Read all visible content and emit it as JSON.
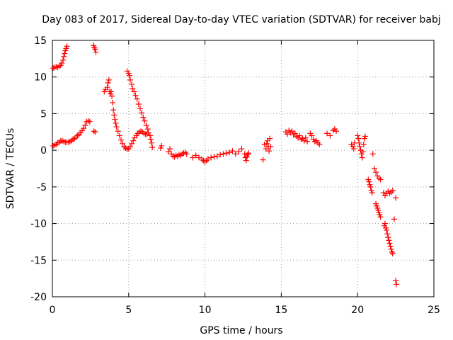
{
  "chart_data": {
    "type": "scatter",
    "title": "Day 083 of 2017, Sidereal Day-to-day VTEC variation (SDTVAR) for receiver babj",
    "xlabel": "GPS time / hours",
    "ylabel": "SDTVAR / TECUs",
    "xlim": [
      0,
      25
    ],
    "ylim": [
      -20,
      15
    ],
    "xticks": [
      0,
      5,
      10,
      15,
      20,
      25
    ],
    "yticks": [
      -20,
      -15,
      -10,
      -5,
      0,
      5,
      10,
      15
    ],
    "grid": true,
    "marker": "+",
    "color": "#ff0000",
    "series": [
      {
        "name": "SDTVAR",
        "points": [
          [
            0.05,
            11.2
          ],
          [
            0.15,
            11.3
          ],
          [
            0.25,
            11.4
          ],
          [
            0.35,
            11.3
          ],
          [
            0.45,
            11.5
          ],
          [
            0.55,
            11.6
          ],
          [
            0.62,
            11.9
          ],
          [
            0.7,
            12.3
          ],
          [
            0.75,
            12.8
          ],
          [
            0.8,
            13.2
          ],
          [
            0.85,
            13.6
          ],
          [
            0.9,
            13.9
          ],
          [
            0.95,
            14.2
          ],
          [
            0.05,
            0.6
          ],
          [
            0.15,
            0.7
          ],
          [
            0.25,
            0.8
          ],
          [
            0.35,
            1.0
          ],
          [
            0.45,
            1.1
          ],
          [
            0.55,
            1.3
          ],
          [
            0.65,
            1.3
          ],
          [
            0.75,
            1.2
          ],
          [
            0.85,
            1.1
          ],
          [
            0.95,
            1.1
          ],
          [
            1.05,
            1.1
          ],
          [
            1.15,
            1.2
          ],
          [
            1.25,
            1.3
          ],
          [
            1.35,
            1.5
          ],
          [
            1.45,
            1.6
          ],
          [
            1.55,
            1.8
          ],
          [
            1.65,
            2.0
          ],
          [
            1.75,
            2.2
          ],
          [
            1.85,
            2.4
          ],
          [
            1.95,
            2.7
          ],
          [
            2.05,
            3.0
          ],
          [
            2.15,
            3.4
          ],
          [
            2.25,
            3.9
          ],
          [
            2.35,
            4.0
          ],
          [
            2.45,
            3.9
          ],
          [
            2.7,
            14.3
          ],
          [
            2.75,
            14.0
          ],
          [
            2.8,
            13.8
          ],
          [
            2.85,
            13.4
          ],
          [
            2.72,
            2.6
          ],
          [
            2.8,
            2.5
          ],
          [
            3.4,
            8.0
          ],
          [
            3.5,
            8.3
          ],
          [
            3.6,
            8.6
          ],
          [
            3.65,
            9.2
          ],
          [
            3.7,
            9.6
          ],
          [
            3.75,
            8.0
          ],
          [
            3.8,
            7.7
          ],
          [
            3.85,
            8.0
          ],
          [
            3.9,
            7.4
          ],
          [
            3.95,
            6.5
          ],
          [
            4.0,
            5.5
          ],
          [
            4.05,
            4.8
          ],
          [
            4.1,
            4.2
          ],
          [
            4.15,
            3.7
          ],
          [
            4.2,
            3.2
          ],
          [
            4.3,
            2.6
          ],
          [
            4.4,
            2.0
          ],
          [
            4.5,
            1.4
          ],
          [
            4.6,
            0.9
          ],
          [
            4.7,
            0.5
          ],
          [
            4.8,
            0.3
          ],
          [
            4.9,
            0.15
          ],
          [
            5.0,
            0.2
          ],
          [
            5.1,
            0.5
          ],
          [
            5.2,
            0.9
          ],
          [
            5.3,
            1.3
          ],
          [
            5.4,
            1.7
          ],
          [
            5.5,
            2.0
          ],
          [
            5.6,
            2.3
          ],
          [
            5.7,
            2.5
          ],
          [
            5.8,
            2.6
          ],
          [
            5.9,
            2.5
          ],
          [
            6.0,
            2.3
          ],
          [
            6.1,
            2.2
          ],
          [
            6.2,
            2.2
          ],
          [
            4.9,
            10.8
          ],
          [
            5.0,
            10.5
          ],
          [
            5.05,
            10.2
          ],
          [
            5.1,
            9.6
          ],
          [
            5.2,
            9.0
          ],
          [
            5.25,
            8.4
          ],
          [
            5.35,
            8.0
          ],
          [
            5.45,
            7.5
          ],
          [
            5.55,
            7.0
          ],
          [
            5.65,
            6.3
          ],
          [
            5.75,
            5.7
          ],
          [
            5.85,
            5.1
          ],
          [
            5.95,
            4.5
          ],
          [
            6.05,
            4.0
          ],
          [
            6.15,
            3.4
          ],
          [
            6.25,
            2.9
          ],
          [
            6.3,
            2.4
          ],
          [
            6.4,
            2.0
          ],
          [
            6.45,
            1.5
          ],
          [
            6.5,
            1.0
          ],
          [
            6.55,
            0.4
          ],
          [
            7.1,
            0.3
          ],
          [
            7.15,
            0.6
          ],
          [
            7.6,
            -0.2
          ],
          [
            7.7,
            0.2
          ],
          [
            7.8,
            -0.5
          ],
          [
            7.9,
            -0.8
          ],
          [
            8.0,
            -0.9
          ],
          [
            8.1,
            -0.7
          ],
          [
            8.2,
            -0.8
          ],
          [
            8.3,
            -0.6
          ],
          [
            8.4,
            -0.7
          ],
          [
            8.5,
            -0.5
          ],
          [
            8.6,
            -0.4
          ],
          [
            8.7,
            -0.3
          ],
          [
            8.8,
            -0.5
          ],
          [
            9.2,
            -1.0
          ],
          [
            9.4,
            -0.7
          ],
          [
            9.6,
            -1.0
          ],
          [
            9.8,
            -1.2
          ],
          [
            9.9,
            -1.4
          ],
          [
            10.0,
            -1.6
          ],
          [
            10.1,
            -1.4
          ],
          [
            10.2,
            -1.2
          ],
          [
            10.4,
            -1.0
          ],
          [
            10.6,
            -0.9
          ],
          [
            10.8,
            -0.8
          ],
          [
            11.0,
            -0.6
          ],
          [
            11.2,
            -0.5
          ],
          [
            11.4,
            -0.4
          ],
          [
            11.6,
            -0.3
          ],
          [
            11.8,
            -0.1
          ],
          [
            12.0,
            -0.5
          ],
          [
            12.2,
            -0.2
          ],
          [
            12.4,
            0.2
          ],
          [
            12.6,
            -0.5
          ],
          [
            12.65,
            -1.0
          ],
          [
            12.7,
            -1.4
          ],
          [
            12.75,
            -0.9
          ],
          [
            12.8,
            -0.6
          ],
          [
            12.85,
            -0.4
          ],
          [
            13.8,
            -1.3
          ],
          [
            13.9,
            0.8
          ],
          [
            14.0,
            0.2
          ],
          [
            14.05,
            0.9
          ],
          [
            14.1,
            1.3
          ],
          [
            14.15,
            0.5
          ],
          [
            14.2,
            -0.1
          ],
          [
            14.25,
            1.6
          ],
          [
            14.3,
            0.5
          ],
          [
            15.3,
            2.5
          ],
          [
            15.4,
            2.2
          ],
          [
            15.5,
            2.7
          ],
          [
            15.6,
            2.4
          ],
          [
            15.7,
            2.6
          ],
          [
            15.8,
            2.1
          ],
          [
            15.9,
            2.3
          ],
          [
            16.0,
            1.9
          ],
          [
            16.1,
            1.7
          ],
          [
            16.2,
            2.0
          ],
          [
            16.3,
            1.5
          ],
          [
            16.4,
            1.6
          ],
          [
            16.5,
            1.3
          ],
          [
            16.6,
            1.7
          ],
          [
            16.7,
            1.2
          ],
          [
            16.9,
            2.3
          ],
          [
            17.0,
            2.0
          ],
          [
            17.1,
            1.5
          ],
          [
            17.2,
            1.2
          ],
          [
            17.3,
            1.3
          ],
          [
            17.4,
            1.0
          ],
          [
            17.5,
            0.8
          ],
          [
            18.0,
            2.3
          ],
          [
            18.2,
            2.0
          ],
          [
            18.4,
            2.7
          ],
          [
            18.5,
            2.9
          ],
          [
            18.6,
            2.6
          ],
          [
            19.6,
            0.8
          ],
          [
            19.7,
            0.5
          ],
          [
            19.75,
            0.2
          ],
          [
            19.8,
            1.0
          ],
          [
            20.0,
            2.0
          ],
          [
            20.05,
            1.6
          ],
          [
            20.1,
            1.0
          ],
          [
            20.15,
            0.5
          ],
          [
            20.2,
            0.0
          ],
          [
            20.25,
            -0.5
          ],
          [
            20.3,
            -1.0
          ],
          [
            20.35,
            -0.2
          ],
          [
            20.4,
            0.8
          ],
          [
            20.45,
            1.6
          ],
          [
            20.5,
            1.9
          ],
          [
            20.7,
            -4.0
          ],
          [
            20.75,
            -4.3
          ],
          [
            20.8,
            -4.7
          ],
          [
            20.85,
            -5.0
          ],
          [
            20.9,
            -5.5
          ],
          [
            20.95,
            -5.8
          ],
          [
            21.0,
            -0.5
          ],
          [
            21.1,
            -2.5
          ],
          [
            21.2,
            -3.0
          ],
          [
            21.3,
            -3.5
          ],
          [
            21.4,
            -3.8
          ],
          [
            21.5,
            -4.0
          ],
          [
            21.2,
            -7.3
          ],
          [
            21.25,
            -7.6
          ],
          [
            21.3,
            -7.9
          ],
          [
            21.35,
            -8.2
          ],
          [
            21.4,
            -8.5
          ],
          [
            21.45,
            -8.8
          ],
          [
            21.5,
            -9.1
          ],
          [
            21.7,
            -5.8
          ],
          [
            21.8,
            -6.2
          ],
          [
            21.9,
            -5.9
          ],
          [
            22.0,
            -5.6
          ],
          [
            22.1,
            -5.9
          ],
          [
            22.2,
            -5.7
          ],
          [
            22.3,
            -5.5
          ],
          [
            21.75,
            -10.3
          ],
          [
            21.8,
            -10.0
          ],
          [
            21.85,
            -10.6
          ],
          [
            21.9,
            -10.9
          ],
          [
            21.95,
            -11.4
          ],
          [
            22.0,
            -11.9
          ],
          [
            22.05,
            -12.3
          ],
          [
            22.1,
            -12.7
          ],
          [
            22.15,
            -13.1
          ],
          [
            22.2,
            -13.5
          ],
          [
            22.25,
            -13.9
          ],
          [
            22.3,
            -14.1
          ],
          [
            22.4,
            -9.4
          ],
          [
            22.5,
            -6.5
          ],
          [
            22.5,
            -17.8
          ],
          [
            22.55,
            -18.3
          ]
        ]
      }
    ]
  }
}
